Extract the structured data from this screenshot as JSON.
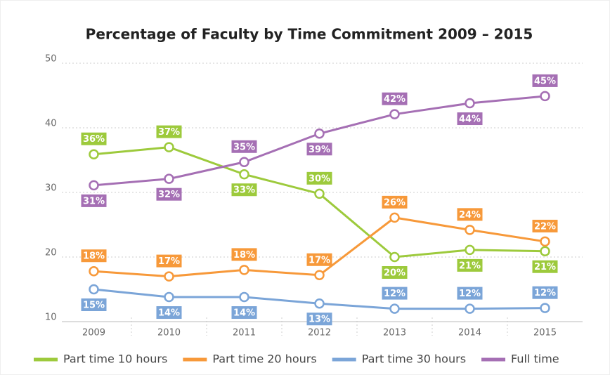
{
  "chart_data": {
    "type": "line",
    "title": "Percentage of Faculty by Time Commitment 2009 – 2015",
    "categories": [
      "2009",
      "2010",
      "2011",
      "2012",
      "2013",
      "2014",
      "2015"
    ],
    "ylim": [
      10,
      50
    ],
    "yticks": [
      10,
      20,
      30,
      40,
      50
    ],
    "grid": true,
    "legend": "bottom",
    "series": [
      {
        "name": "Part time 10 hours",
        "color": "#9dca3c",
        "values": [
          35.9,
          37,
          32.8,
          29.8,
          20,
          21.1,
          20.9
        ],
        "value_labels": [
          "36%",
          "37%",
          "33%",
          "30%",
          "20%",
          "21%",
          "21%"
        ]
      },
      {
        "name": "Part time 20 hours",
        "color": "#f7993a",
        "values": [
          17.8,
          17,
          18,
          17.2,
          26.1,
          24.2,
          22.4
        ],
        "value_labels": [
          "18%",
          "17%",
          "18%",
          "17%",
          "26%",
          "24%",
          "22%"
        ]
      },
      {
        "name": "Part time 30 hours",
        "color": "#7ba5d8",
        "values": [
          15,
          13.8,
          13.8,
          12.8,
          12,
          12,
          12.1
        ],
        "value_labels": [
          "15%",
          "14%",
          "14%",
          "13%",
          "12%",
          "12%",
          "12%"
        ]
      },
      {
        "name": "Full time",
        "color": "#a56fb4",
        "values": [
          31.1,
          32.1,
          34.7,
          39.1,
          42.1,
          43.8,
          44.9
        ],
        "value_labels": [
          "31%",
          "32%",
          "35%",
          "39%",
          "42%",
          "44%",
          "45%"
        ]
      }
    ]
  }
}
